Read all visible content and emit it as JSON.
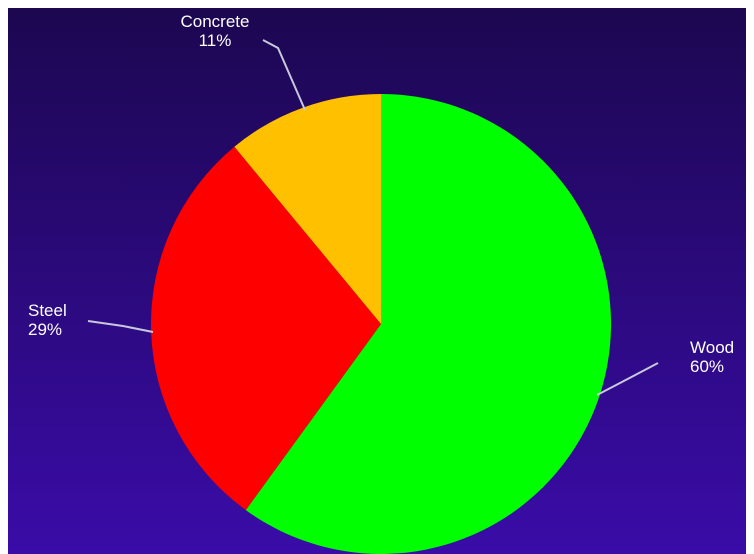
{
  "chart_data": {
    "type": "pie",
    "title": "",
    "slices": [
      {
        "label": "Wood",
        "value": 60,
        "value_label": "60%",
        "color": "#00ff00"
      },
      {
        "label": "Steel",
        "value": 29,
        "value_label": "29%",
        "color": "#ff0000"
      },
      {
        "label": "Concrete",
        "value": 11,
        "value_label": "11%",
        "color": "#ffc000"
      }
    ],
    "start_angle_deg": 0,
    "direction": "clockwise",
    "legend": "none",
    "background_gradient": [
      "#1c0750",
      "#3a0ca8"
    ],
    "leader_line_color": "#c8c8dc"
  }
}
